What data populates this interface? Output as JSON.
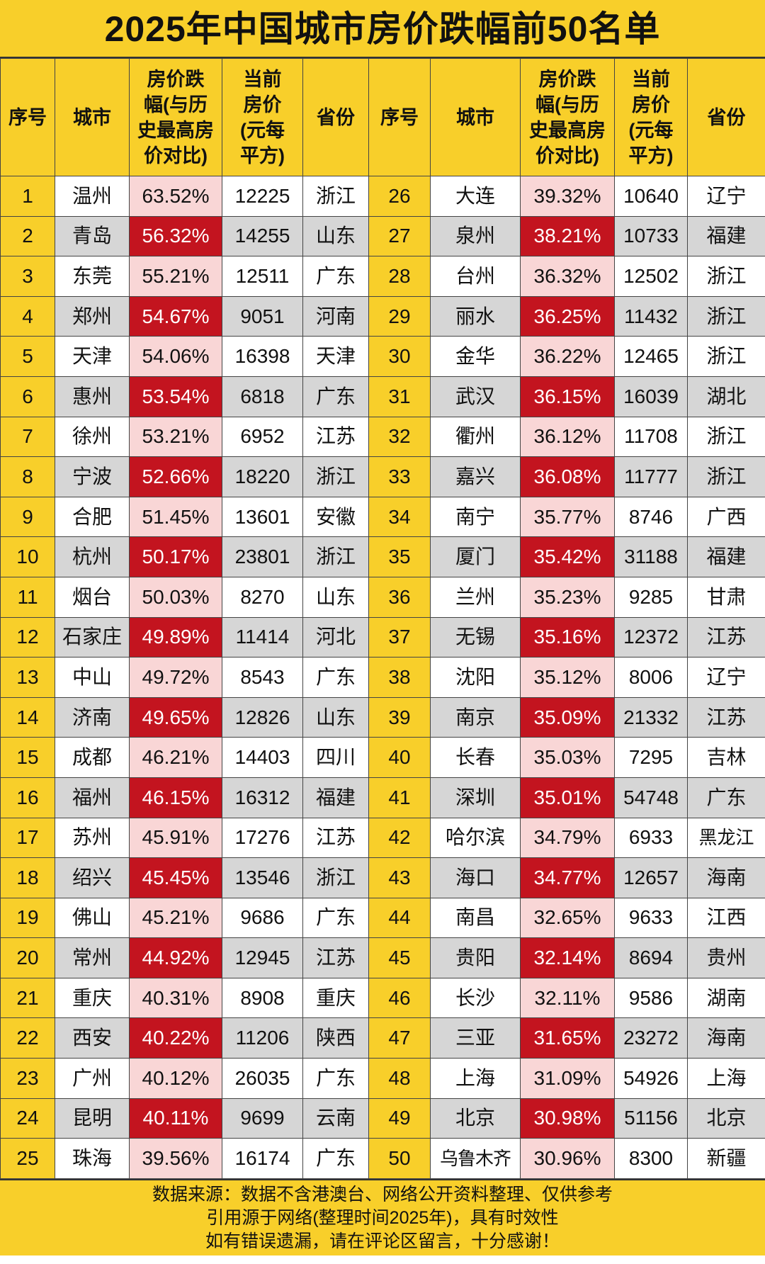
{
  "title": "2025年中国城市房价跌幅前50名单",
  "headers": [
    "序号",
    "城市",
    "房价跌幅(与历史最高房价对比)",
    "当前房价(元每平方)",
    "省份"
  ],
  "rows": [
    [
      "1",
      "温州",
      "63.52%",
      "12225",
      "浙江"
    ],
    [
      "2",
      "青岛",
      "56.32%",
      "14255",
      "山东"
    ],
    [
      "3",
      "东莞",
      "55.21%",
      "12511",
      "广东"
    ],
    [
      "4",
      "郑州",
      "54.67%",
      "9051",
      "河南"
    ],
    [
      "5",
      "天津",
      "54.06%",
      "16398",
      "天津"
    ],
    [
      "6",
      "惠州",
      "53.54%",
      "6818",
      "广东"
    ],
    [
      "7",
      "徐州",
      "53.21%",
      "6952",
      "江苏"
    ],
    [
      "8",
      "宁波",
      "52.66%",
      "18220",
      "浙江"
    ],
    [
      "9",
      "合肥",
      "51.45%",
      "13601",
      "安徽"
    ],
    [
      "10",
      "杭州",
      "50.17%",
      "23801",
      "浙江"
    ],
    [
      "11",
      "烟台",
      "50.03%",
      "8270",
      "山东"
    ],
    [
      "12",
      "石家庄",
      "49.89%",
      "11414",
      "河北"
    ],
    [
      "13",
      "中山",
      "49.72%",
      "8543",
      "广东"
    ],
    [
      "14",
      "济南",
      "49.65%",
      "12826",
      "山东"
    ],
    [
      "15",
      "成都",
      "46.21%",
      "14403",
      "四川"
    ],
    [
      "16",
      "福州",
      "46.15%",
      "16312",
      "福建"
    ],
    [
      "17",
      "苏州",
      "45.91%",
      "17276",
      "江苏"
    ],
    [
      "18",
      "绍兴",
      "45.45%",
      "13546",
      "浙江"
    ],
    [
      "19",
      "佛山",
      "45.21%",
      "9686",
      "广东"
    ],
    [
      "20",
      "常州",
      "44.92%",
      "12945",
      "江苏"
    ],
    [
      "21",
      "重庆",
      "40.31%",
      "8908",
      "重庆"
    ],
    [
      "22",
      "西安",
      "40.22%",
      "11206",
      "陕西"
    ],
    [
      "23",
      "广州",
      "40.12%",
      "26035",
      "广东"
    ],
    [
      "24",
      "昆明",
      "40.11%",
      "9699",
      "云南"
    ],
    [
      "25",
      "珠海",
      "39.56%",
      "16174",
      "广东"
    ],
    [
      "26",
      "大连",
      "39.32%",
      "10640",
      "辽宁"
    ],
    [
      "27",
      "泉州",
      "38.21%",
      "10733",
      "福建"
    ],
    [
      "28",
      "台州",
      "36.32%",
      "12502",
      "浙江"
    ],
    [
      "29",
      "丽水",
      "36.25%",
      "11432",
      "浙江"
    ],
    [
      "30",
      "金华",
      "36.22%",
      "12465",
      "浙江"
    ],
    [
      "31",
      "武汉",
      "36.15%",
      "16039",
      "湖北"
    ],
    [
      "32",
      "衢州",
      "36.12%",
      "11708",
      "浙江"
    ],
    [
      "33",
      "嘉兴",
      "36.08%",
      "11777",
      "浙江"
    ],
    [
      "34",
      "南宁",
      "35.77%",
      "8746",
      "广西"
    ],
    [
      "35",
      "厦门",
      "35.42%",
      "31188",
      "福建"
    ],
    [
      "36",
      "兰州",
      "35.23%",
      "9285",
      "甘肃"
    ],
    [
      "37",
      "无锡",
      "35.16%",
      "12372",
      "江苏"
    ],
    [
      "38",
      "沈阳",
      "35.12%",
      "8006",
      "辽宁"
    ],
    [
      "39",
      "南京",
      "35.09%",
      "21332",
      "江苏"
    ],
    [
      "40",
      "长春",
      "35.03%",
      "7295",
      "吉林"
    ],
    [
      "41",
      "深圳",
      "35.01%",
      "54748",
      "广东"
    ],
    [
      "42",
      "哈尔滨",
      "34.79%",
      "6933",
      "黑龙江"
    ],
    [
      "43",
      "海口",
      "34.77%",
      "12657",
      "海南"
    ],
    [
      "44",
      "南昌",
      "32.65%",
      "9633",
      "江西"
    ],
    [
      "45",
      "贵阳",
      "32.14%",
      "8694",
      "贵州"
    ],
    [
      "46",
      "长沙",
      "32.11%",
      "9586",
      "湖南"
    ],
    [
      "47",
      "三亚",
      "31.65%",
      "23272",
      "海南"
    ],
    [
      "48",
      "上海",
      "31.09%",
      "54926",
      "上海"
    ],
    [
      "49",
      "北京",
      "30.98%",
      "51156",
      "北京"
    ],
    [
      "50",
      "乌鲁木齐",
      "30.96%",
      "8300",
      "新疆"
    ]
  ],
  "footer": [
    "数据来源：数据不含港澳台、网络公开资料整理、仅供参考",
    "引用源于网络(整理时间2025年)，具有时效性",
    "如有错误遗漏，请在评论区留言，十分感谢！"
  ],
  "colors": {
    "background": "#f8cf2a",
    "highlight_red": "#c3141f",
    "highlight_pink": "#f9d6d6",
    "row_gray": "#d6d6d6"
  }
}
